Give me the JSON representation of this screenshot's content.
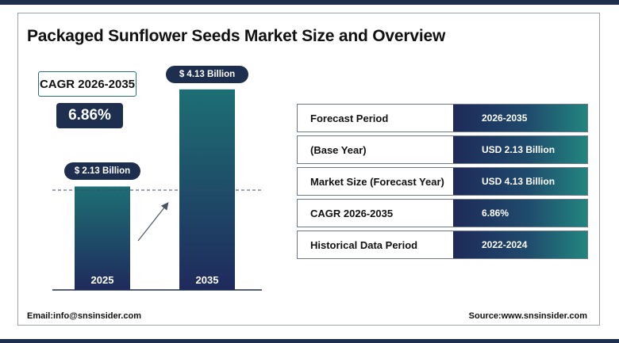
{
  "title": "Packaged Sunflower Seeds Market Size and Overview",
  "cagr": {
    "label": "CAGR 2026-2035",
    "value": "6.86%"
  },
  "chart_data": {
    "type": "bar",
    "categories": [
      "2025",
      "2035"
    ],
    "values": [
      2.13,
      4.13
    ],
    "data_labels": [
      "$ 2.13 Billion",
      "$ 4.13 Billion"
    ],
    "ylim": [
      0,
      4.6
    ],
    "grid": false,
    "colors": {
      "bar_top": "#1d6f74",
      "bar_bottom": "#1f2a5c"
    }
  },
  "table": {
    "rows": [
      {
        "label": "Forecast Period",
        "value": "2026-2035"
      },
      {
        "label": "(Base Year)",
        "value": "USD 2.13 Billion"
      },
      {
        "label": "Market Size (Forecast Year)",
        "value": "USD 4.13 Billion"
      },
      {
        "label": "CAGR 2026-2035",
        "value": "6.86%"
      },
      {
        "label": "Historical Data Period",
        "value": "2022-2024"
      }
    ]
  },
  "footer": {
    "email": "Email:info@snsinsider.com",
    "source": "Source:www.snsinsider.com"
  }
}
